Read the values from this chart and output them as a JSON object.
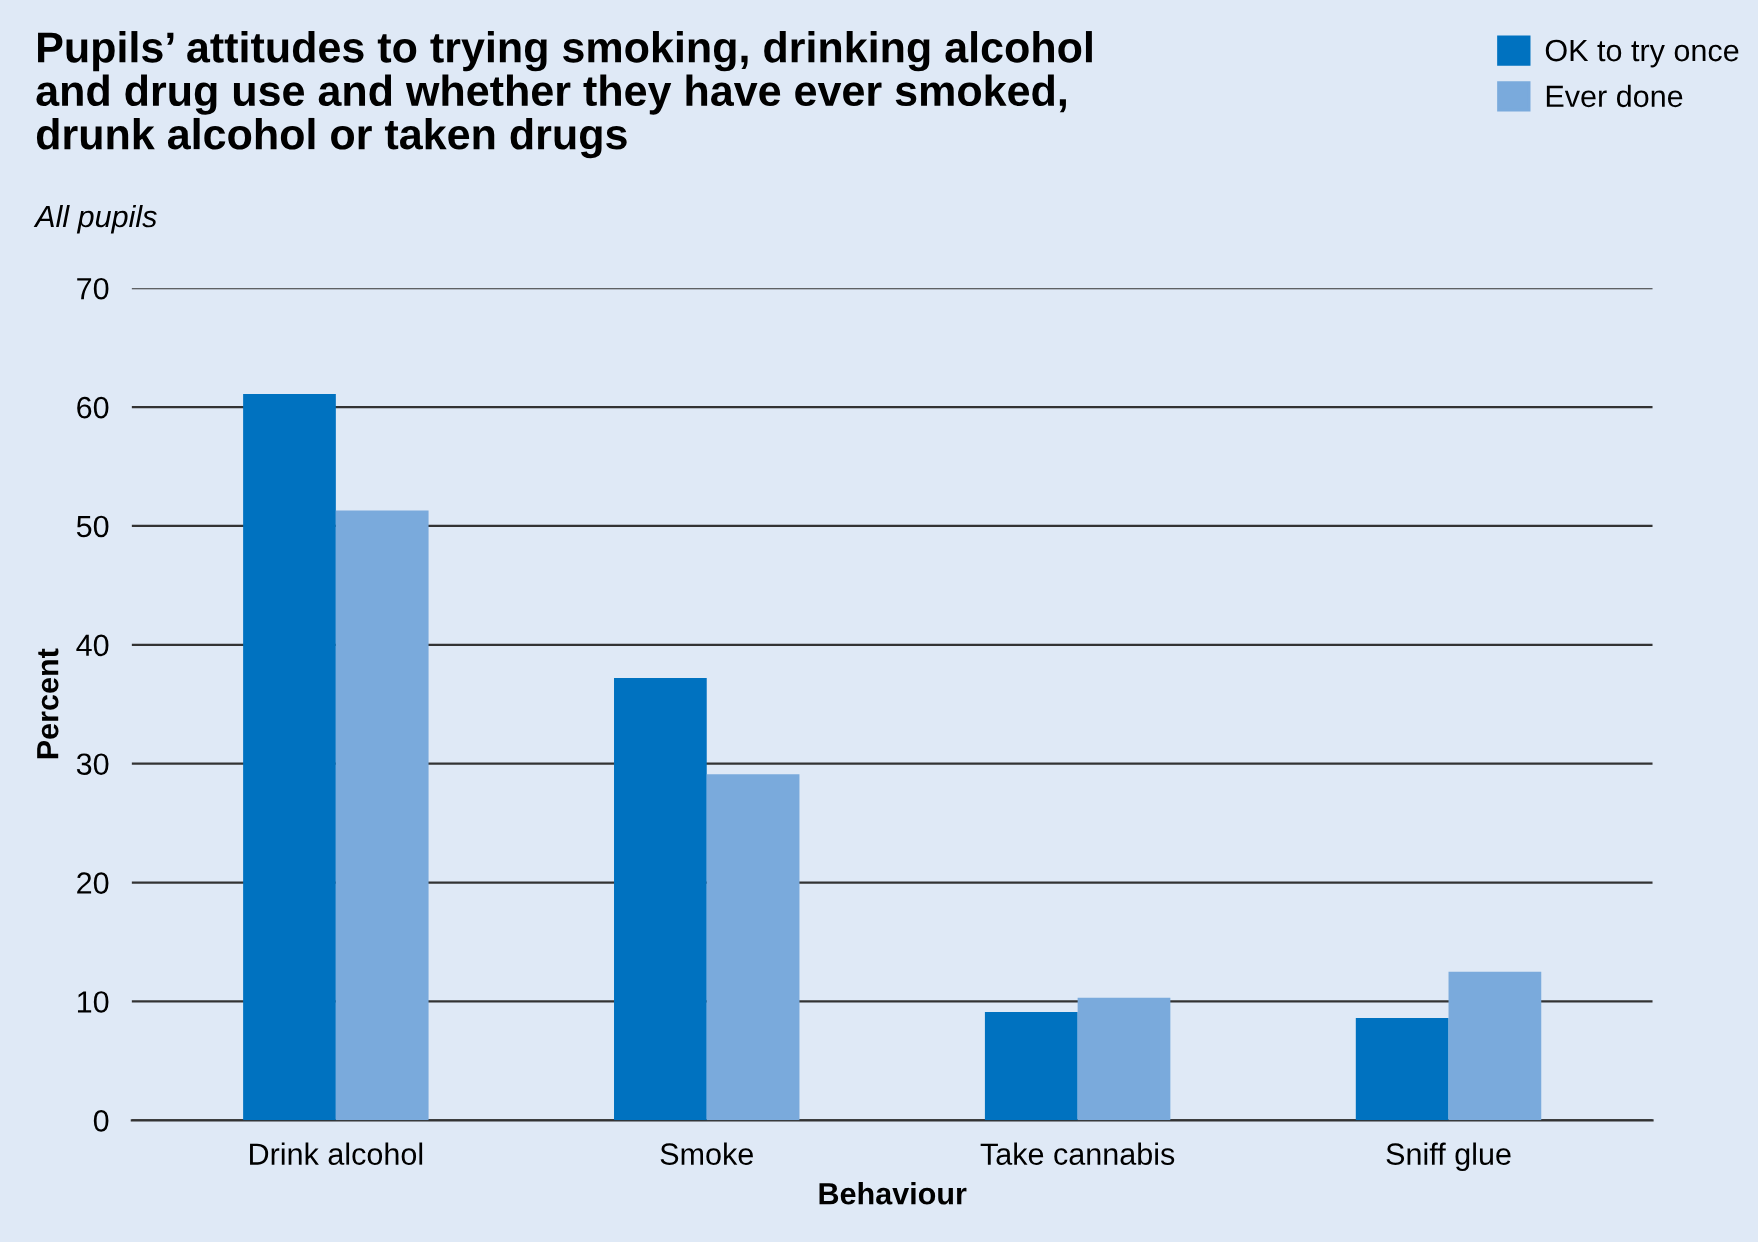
{
  "chart_data": {
    "type": "bar",
    "title": "Pupils’ attitudes to trying smoking, drinking alcohol\nand drug use and whether they have ever smoked,\ndrunk alcohol or taken drugs",
    "subtitle": "All pupils",
    "xlabel": "Behaviour",
    "ylabel": "Percent",
    "categories": [
      "Drink alcohol",
      "Smoke",
      "Take cannabis",
      "Sniff glue"
    ],
    "series": [
      {
        "name": "OK to try once",
        "color": "#0072c0",
        "values": [
          61.1,
          37.2,
          9.1,
          8.6
        ]
      },
      {
        "name": "Ever done",
        "color": "#7aaadc",
        "values": [
          51.3,
          29.1,
          10.3,
          12.5
        ]
      }
    ],
    "ylim": [
      0,
      70
    ],
    "yticks": [
      0,
      10,
      20,
      30,
      40,
      50,
      60,
      70
    ],
    "grid": "y",
    "legend": "top right"
  }
}
